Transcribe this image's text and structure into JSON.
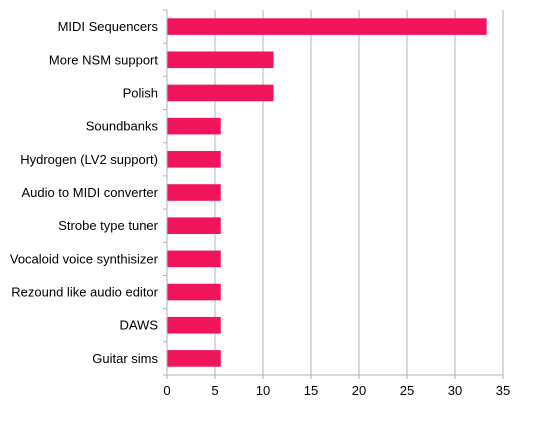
{
  "chart_data": {
    "type": "bar",
    "orientation": "horizontal",
    "title": "",
    "xlabel": "",
    "ylabel": "",
    "categories": [
      "MIDI Sequencers",
      "More NSM support",
      "Polish",
      "Soundbanks",
      "Hydrogen (LV2 support)",
      "Audio to MIDI converter",
      "Strobe type tuner",
      "Vocaloid voice synthisizer",
      "Rezound like audio editor",
      "DAWS",
      "Guitar sims"
    ],
    "values": [
      33.3,
      11.1,
      11.1,
      5.6,
      5.6,
      5.6,
      5.6,
      5.6,
      5.6,
      5.6,
      5.6
    ],
    "xlim": [
      0,
      35
    ],
    "xticks": [
      "0",
      "5",
      "10",
      "15",
      "20",
      "25",
      "30",
      "35"
    ],
    "grid": true,
    "legend": "none",
    "bar_color": "#f0145a"
  }
}
